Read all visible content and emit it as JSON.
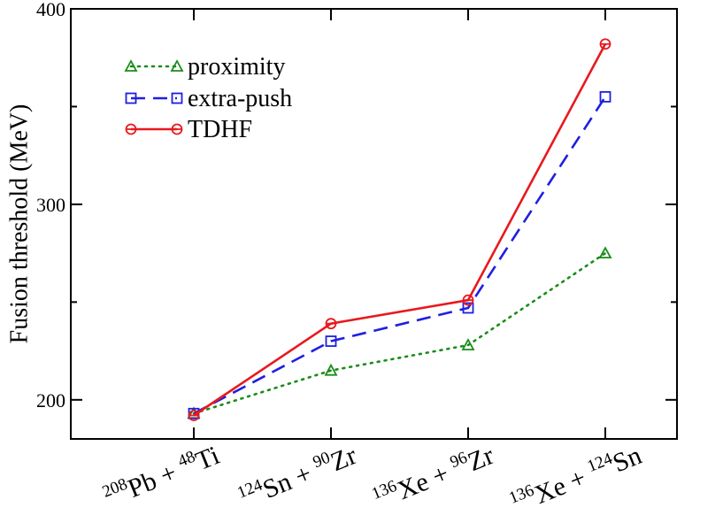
{
  "chart_data": {
    "type": "line",
    "title": "",
    "xlabel": "",
    "ylabel": "Fusion threshold (MeV)",
    "ylim": [
      180,
      400
    ],
    "yticks": [
      200,
      300,
      400
    ],
    "grid": false,
    "legend_position": "top-left",
    "categories": [
      {
        "iso1": "208",
        "el1": "Pb",
        "iso2": "48",
        "el2": "Ti"
      },
      {
        "iso1": "124",
        "el1": "Sn",
        "iso2": "90",
        "el2": "Zr"
      },
      {
        "iso1": "136",
        "el1": "Xe",
        "iso2": "96",
        "el2": "Zr"
      },
      {
        "iso1": "136",
        "el1": "Xe",
        "iso2": "124",
        "el2": "Sn"
      }
    ],
    "plus": "+",
    "series": [
      {
        "name": "proximity",
        "values": [
          193,
          215,
          228,
          275
        ],
        "color": "#1a8c1a",
        "dash": "dotted",
        "marker": "triangle"
      },
      {
        "name": "extra-push",
        "values": [
          193,
          230,
          247,
          355
        ],
        "color": "#1f1fe0",
        "dash": "dashed",
        "marker": "square"
      },
      {
        "name": "TDHF",
        "values": [
          192,
          239,
          251,
          382
        ],
        "color": "#e8191e",
        "dash": "solid",
        "marker": "circle"
      }
    ]
  }
}
